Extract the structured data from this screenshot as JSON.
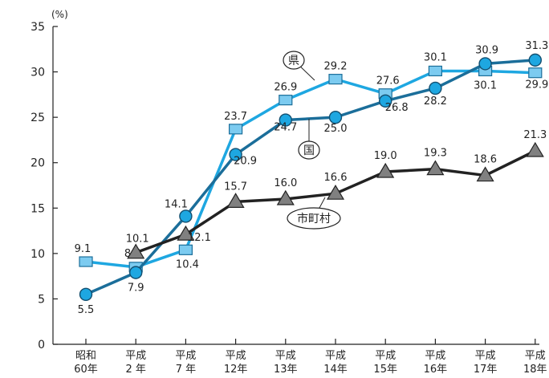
{
  "chart_data": {
    "type": "line",
    "unit": "(%)",
    "ylim": [
      0,
      35
    ],
    "yticks": [
      0,
      5,
      10,
      15,
      20,
      25,
      30,
      35
    ],
    "grid": false,
    "categories": [
      [
        "昭和",
        "60年"
      ],
      [
        "平成",
        "2 年"
      ],
      [
        "平成",
        "7 年"
      ],
      [
        "平成",
        "12年"
      ],
      [
        "平成",
        "13年"
      ],
      [
        "平成",
        "14年"
      ],
      [
        "平成",
        "15年"
      ],
      [
        "平成",
        "16年"
      ],
      [
        "平成",
        "17年"
      ],
      [
        "平成",
        "18年"
      ]
    ],
    "series": [
      {
        "name": "県",
        "marker": "square",
        "line_color": "#1ea7e1",
        "marker_color": "#7ccbf0",
        "values": [
          9.1,
          8.5,
          10.4,
          23.7,
          26.9,
          29.2,
          27.6,
          30.1,
          30.1,
          29.9
        ],
        "labels": [
          "9.1",
          "8.5",
          "10.4",
          "23.7",
          "26.9",
          "29.2",
          "27.6",
          "30.1",
          "30.1",
          "29.9"
        ]
      },
      {
        "name": "国",
        "marker": "circle",
        "line_color": "#1b6e9a",
        "marker_color": "#1ea7e1",
        "values": [
          5.5,
          7.9,
          14.1,
          20.9,
          24.7,
          25.0,
          26.8,
          28.2,
          30.9,
          31.3
        ],
        "labels": [
          "5.5",
          "7.9",
          "14.1",
          "20.9",
          "24.7",
          "25.0",
          "26.8",
          "28.2",
          "30.9",
          "31.3"
        ]
      },
      {
        "name": "市町村",
        "marker": "triangle",
        "line_color": "#222222",
        "marker_color": "#808080",
        "values": [
          null,
          10.1,
          12.1,
          15.7,
          16.0,
          16.6,
          19.0,
          19.3,
          18.6,
          21.3
        ],
        "labels": [
          null,
          "10.1",
          "12.1",
          "15.7",
          "16.0",
          "16.6",
          "19.0",
          "19.3",
          "18.6",
          "21.3"
        ]
      }
    ]
  }
}
